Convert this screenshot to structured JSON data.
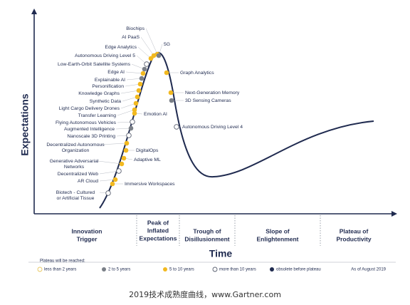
{
  "title_y": "Expectations",
  "title_x": "Time",
  "phases": [
    [
      "Innovation",
      "Trigger"
    ],
    [
      "Peak of",
      "Inflated",
      "Expectations"
    ],
    [
      "Trough of",
      "Disillusionment"
    ],
    [
      "Slope of",
      "Enlightenment"
    ],
    [
      "Plateau of",
      "Productivity"
    ]
  ],
  "nodes": [
    {
      "label": [
        "Biochips"
      ],
      "color": "#f2b920"
    },
    {
      "label": [
        "AI PaaS"
      ],
      "color": "#f2b920"
    },
    {
      "label": [
        "Edge Analytics"
      ],
      "color": "#f2b920"
    },
    {
      "label": [
        "Autonomous Driving Level 5"
      ],
      "color": "#ffffff"
    },
    {
      "label": [
        "Low-Earth-Orbit Satellite Systems"
      ],
      "color": "#7a7f87"
    },
    {
      "label": [
        "Edge AI"
      ],
      "color": "#f2b920"
    },
    {
      "label": [
        "Explainable AI"
      ],
      "color": "#7a7f87"
    },
    {
      "label": [
        "Personification"
      ],
      "color": "#f2b920"
    },
    {
      "label": [
        "Knowledge Graphs"
      ],
      "color": "#f2b920"
    },
    {
      "label": [
        "Synthetic Data"
      ],
      "color": "#f2b920"
    },
    {
      "label": [
        "Light Cargo Delivery Drones"
      ],
      "color": "#f2b920"
    },
    {
      "label": [
        "Transfer Learning"
      ],
      "color": "#f2b920"
    },
    {
      "label": [
        "Flying Autonomous Vehicles"
      ],
      "color": "#ffffff"
    },
    {
      "label": [
        "Augmented Intelligence"
      ],
      "color": "#7a7f87"
    },
    {
      "label": [
        "Nanoscale 3D Printing"
      ],
      "color": "#ffffff"
    },
    {
      "label": [
        "Decentralized Autonomous",
        "Organization"
      ],
      "color": "#f2b920"
    },
    {
      "label": [
        "Generative Adversarial",
        "Networks"
      ],
      "color": "#f2b920"
    },
    {
      "label": [
        "Decentralized Web"
      ],
      "color": "#ffffff"
    },
    {
      "label": [
        "AR Cloud"
      ],
      "color": "#f2b920"
    },
    {
      "label": [
        "Biotech - Cultured",
        "or Artificial Tissue"
      ],
      "color": "#ffffff"
    },
    {
      "label": [
        "5G"
      ],
      "color": "#7a7f87"
    },
    {
      "label": [
        "Graph Analytics"
      ],
      "color": "#f2b920"
    },
    {
      "label": [
        "Emotion AI"
      ],
      "color": "#f2b920"
    },
    {
      "label": [
        "Next-Generation Memory"
      ],
      "color": "#f2b920"
    },
    {
      "label": [
        "3D Sensing Cameras"
      ],
      "color": "#7a7f87"
    },
    {
      "label": [
        "Autonomous Driving Level 4"
      ],
      "color": "#ffffff"
    },
    {
      "label": [
        "DigitalOps"
      ],
      "color": "#f2b920"
    },
    {
      "label": [
        "Adaptive ML"
      ],
      "color": "#f2b920"
    },
    {
      "label": [
        "Immersive Workspaces"
      ],
      "color": "#f2b920"
    }
  ],
  "legend": {
    "title": "Plateau will be reached:",
    "items": [
      {
        "label": "less than 2 years",
        "color": "#ffffff"
      },
      {
        "label": "2 to 5 years",
        "color": "#7a7f87"
      },
      {
        "label": "5 to 10 years",
        "color": "#f2b920"
      },
      {
        "label": "more than 10 years",
        "color": "#ffffff"
      },
      {
        "label": "obsolete before plateau",
        "color": "#1f2a4f"
      }
    ],
    "note": "As of August 2019"
  },
  "caption": "2019技术成熟度曲线，www.Gartner.com"
}
